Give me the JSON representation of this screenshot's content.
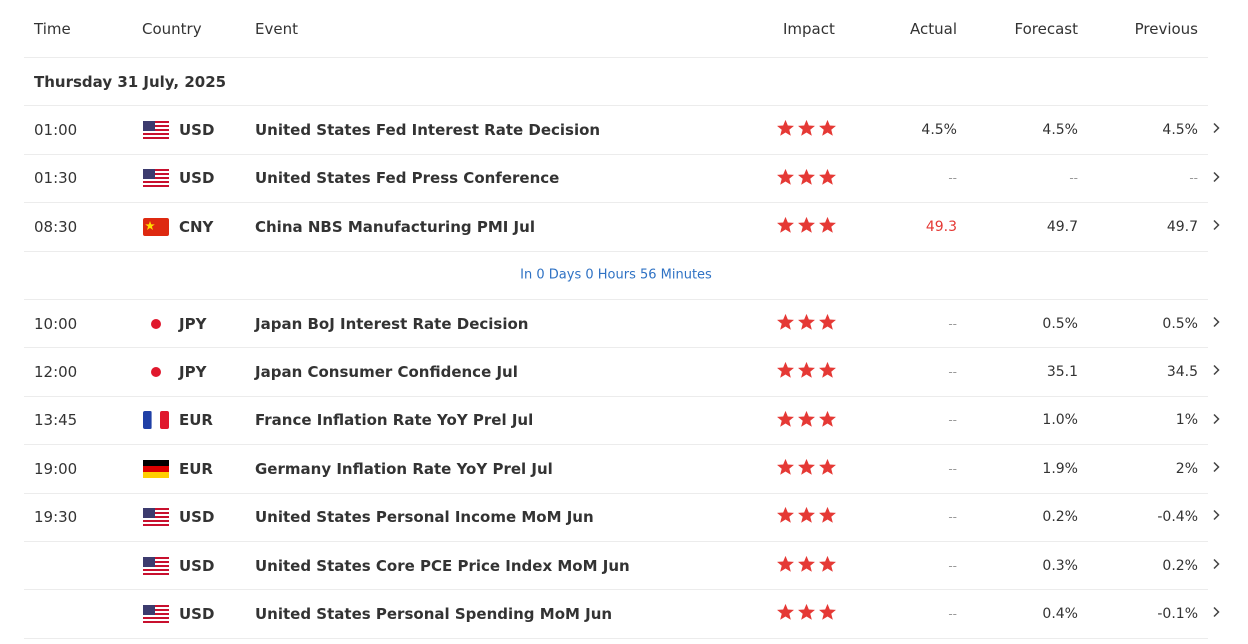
{
  "header": {
    "columns": [
      "Time",
      "Country",
      "Event",
      "Impact",
      "Actual",
      "Forecast",
      "Previous"
    ]
  },
  "date": "Thursday 31 July, 2025",
  "rows": [
    {
      "time": "01:00",
      "currency": "USD",
      "event": "United States Fed Interest Rate Decision",
      "actual": "4.5%",
      "forecast": "4.5%",
      "previous": "4.5%"
    },
    {
      "time": "01:30",
      "currency": "USD",
      "event": "United States Fed Press Conference",
      "actual": "--",
      "forecast": "--",
      "previous": "--"
    },
    {
      "time": "08:30",
      "currency": "CNY",
      "event": "China NBS Manufacturing PMI Jul",
      "actual": "49.3",
      "forecast": "49.7",
      "previous": "49.7"
    },
    {
      "time": "10:00",
      "currency": "JPY",
      "event": "Japan BoJ Interest Rate Decision",
      "actual": "--",
      "forecast": "0.5%",
      "previous": "0.5%"
    },
    {
      "time": "12:00",
      "currency": "JPY",
      "event": "Japan Consumer Confidence Jul",
      "actual": "--",
      "forecast": "35.1",
      "previous": "34.5"
    },
    {
      "time": "13:45",
      "currency": "EUR",
      "event": "France Inflation Rate YoY Prel Jul",
      "actual": "--",
      "forecast": "1.0%",
      "previous": "1%"
    },
    {
      "time": "19:00",
      "currency": "EUR",
      "event": "Germany Inflation Rate YoY Prel Jul",
      "actual": "--",
      "forecast": "1.9%",
      "previous": "2%"
    },
    {
      "time": "19:30",
      "currency": "USD",
      "event": "United States Personal Income MoM Jun",
      "actual": "--",
      "forecast": "0.2%",
      "previous": "-0.4%"
    },
    {
      "time": null,
      "currency": "USD",
      "event": "United States Core PCE Price Index MoM Jun",
      "actual": "--",
      "forecast": "0.3%",
      "previous": "0.2%"
    },
    {
      "time": null,
      "currency": "USD",
      "event": "United States Personal Spending MoM Jun",
      "actual": "--",
      "forecast": "0.4%",
      "previous": "-0.1%"
    }
  ],
  "countdown": "In 0 Days 0 Hours 56 Minutes"
}
